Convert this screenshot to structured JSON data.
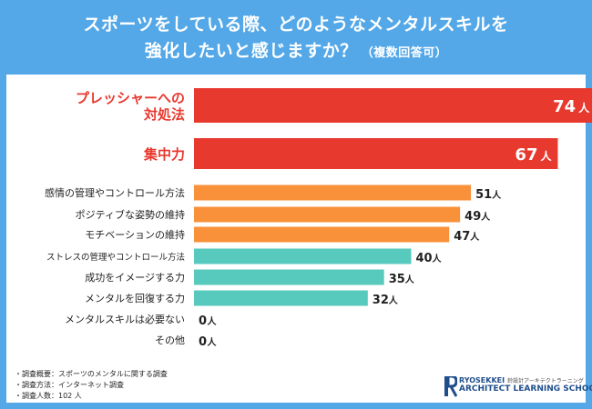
{
  "title": {
    "line1": "スポーツをしている際、どのようなメンタルスキルを",
    "line2": "強化したいと感じますか？",
    "line2_note": "（複数回答可）"
  },
  "colors": {
    "header": "#54a8e8",
    "red": "#e8392f",
    "orange": "#f8913a",
    "teal": "#58c9bd",
    "label_red": "#e8392f",
    "text": "#222222"
  },
  "chart_data": {
    "type": "bar",
    "orientation": "horizontal",
    "unit": "人",
    "categories": [
      "プレッシャーへの対処法",
      "集中力",
      "感情の管理やコントロール方法",
      "ポジティブな姿勢の維持",
      "モチベーションの維持",
      "ストレスの管理やコントロール方法",
      "成功をイメージする力",
      "メンタルを回復する力",
      "メンタルスキルは必要ない",
      "その他"
    ],
    "values": [
      74,
      67,
      51,
      49,
      47,
      40,
      35,
      32,
      0,
      0
    ],
    "group": [
      "red",
      "red",
      "orange",
      "orange",
      "orange",
      "teal",
      "teal",
      "teal",
      "teal",
      "teal"
    ],
    "xlim": [
      0,
      80
    ]
  },
  "footer": {
    "notes": [
      "・調査概要：スポーツのメンタルに関する調査",
      "・調査方法：インターネット調査",
      "・調査人数：102 人"
    ]
  },
  "logo": {
    "brand": "RYOSEKKEI",
    "jp_tagline": "鈴設計アーキテクトラーニング",
    "school": "ARCHITECT LEARNING SCHOOL"
  }
}
